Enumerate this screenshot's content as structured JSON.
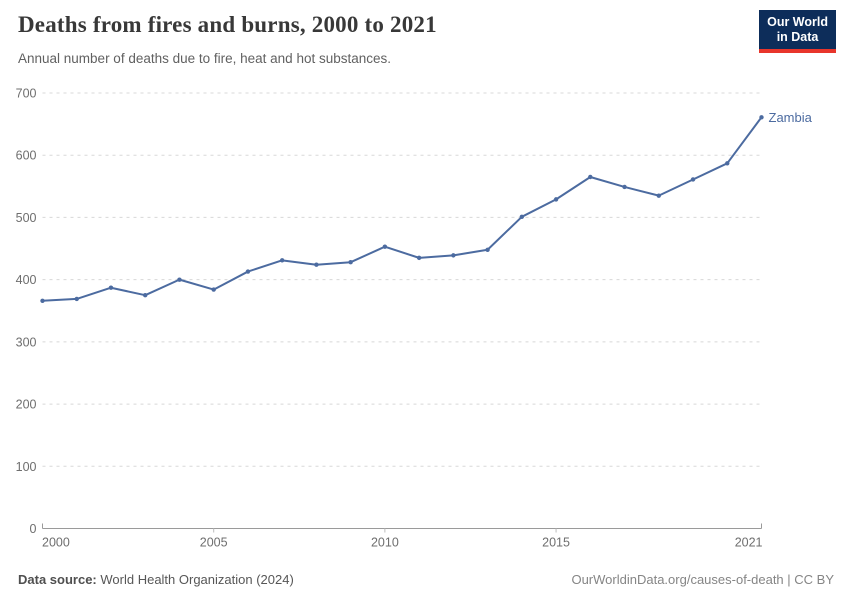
{
  "header": {
    "title": "Deaths from fires and burns, 2000 to 2021",
    "subtitle": "Annual number of deaths due to fire, heat and hot substances.",
    "logo": {
      "line1": "Our World",
      "line2": "in Data"
    }
  },
  "chart_data": {
    "type": "line",
    "title": "Deaths from fires and burns, 2000 to 2021",
    "xlabel": "",
    "ylabel": "",
    "xlim": [
      2000,
      2021
    ],
    "ylim": [
      0,
      700
    ],
    "x_ticks": [
      2000,
      2005,
      2010,
      2015,
      2021
    ],
    "y_ticks": [
      0,
      100,
      200,
      300,
      400,
      500,
      600,
      700
    ],
    "grid": "horizontal-dashed",
    "legend_position": "end-of-line",
    "x": [
      2000,
      2001,
      2002,
      2003,
      2004,
      2005,
      2006,
      2007,
      2008,
      2009,
      2010,
      2011,
      2012,
      2013,
      2014,
      2015,
      2016,
      2017,
      2018,
      2019,
      2020,
      2021
    ],
    "series": [
      {
        "name": "Zambia",
        "color": "#4c6ba0",
        "values": [
          366,
          369,
          387,
          375,
          400,
          384,
          413,
          431,
          424,
          428,
          453,
          435,
          439,
          448,
          501,
          529,
          565,
          549,
          535,
          561,
          587,
          661
        ]
      }
    ]
  },
  "footer": {
    "source_bold": "Data source:",
    "source_text": "World Health Organization (2024)",
    "credit": "OurWorldinData.org/causes-of-death | CC BY"
  },
  "colors": {
    "line": "#4c6ba0",
    "grid": "#d8d8d8",
    "axis": "#9a9a9a",
    "tick": "#bdbdbd",
    "tick_label": "#6e6e6e",
    "logo_bg": "#0d2d5a",
    "logo_accent": "#e8352b"
  }
}
